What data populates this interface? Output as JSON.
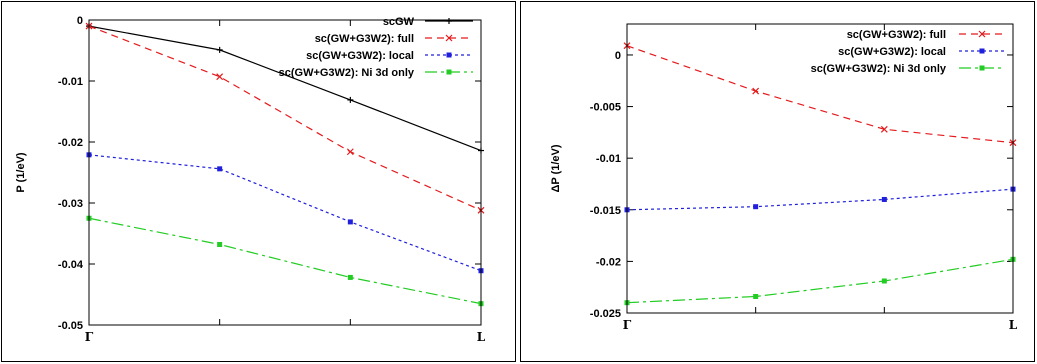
{
  "chart_data": [
    {
      "type": "line",
      "ylabel": "P (1/eV)",
      "ylim": [
        -0.05,
        0
      ],
      "yticks": [
        "0",
        "-0.01",
        "-0.02",
        "-0.03",
        "-0.04",
        "-0.05"
      ],
      "ytick_values": [
        0,
        -0.01,
        -0.02,
        -0.03,
        -0.04,
        -0.05
      ],
      "categories": [
        "Γ",
        "L"
      ],
      "xlim": [
        0,
        3
      ],
      "legend": "top-right",
      "series": [
        {
          "name": "scGW",
          "color": "#000000",
          "dash": "",
          "marker": "plus",
          "x": [
            0,
            1,
            2,
            3
          ],
          "y": [
            -0.001,
            -0.0049,
            -0.0131,
            -0.0214
          ]
        },
        {
          "name": "sc(GW+G3W2): full",
          "color": "#e41a1c",
          "dash": "7,5",
          "marker": "cross",
          "x": [
            0,
            1,
            2,
            3
          ],
          "y": [
            -0.001,
            -0.0093,
            -0.0216,
            -0.0312
          ]
        },
        {
          "name": "sc(GW+G3W2): local",
          "color": "#1f1fdc",
          "dash": "3,3",
          "marker": "square",
          "x": [
            0,
            1,
            2,
            3
          ],
          "y": [
            -0.0221,
            -0.0244,
            -0.0331,
            -0.0411
          ]
        },
        {
          "name": "sc(GW+G3W2): Ni 3d only",
          "color": "#22cc22",
          "dash": "12,4,3,4",
          "marker": "square",
          "x": [
            0,
            1,
            2,
            3
          ],
          "y": [
            -0.0325,
            -0.0368,
            -0.0422,
            -0.0465
          ]
        }
      ]
    },
    {
      "type": "line",
      "ylabel": "ΔP (1/eV)",
      "ylim": [
        -0.025,
        0.003
      ],
      "yticks": [
        "0",
        "-0.005",
        "-0.01",
        "-0.015",
        "-0.02",
        "-0.025"
      ],
      "ytick_values": [
        0,
        -0.005,
        -0.01,
        -0.015,
        -0.02,
        -0.025
      ],
      "categories": [
        "Γ",
        "L"
      ],
      "xlim": [
        0,
        3
      ],
      "legend": "top-right",
      "series": [
        {
          "name": "sc(GW+G3W2): full",
          "color": "#e41a1c",
          "dash": "7,5",
          "marker": "cross",
          "x": [
            0,
            1,
            2,
            3
          ],
          "y": [
            0.0009,
            -0.0035,
            -0.0072,
            -0.0085
          ]
        },
        {
          "name": "sc(GW+G3W2): local",
          "color": "#1f1fdc",
          "dash": "3,3",
          "marker": "square",
          "x": [
            0,
            1,
            2,
            3
          ],
          "y": [
            -0.015,
            -0.0147,
            -0.014,
            -0.013
          ]
        },
        {
          "name": "sc(GW+G3W2): Ni 3d only",
          "color": "#22cc22",
          "dash": "12,4,3,4",
          "marker": "square",
          "x": [
            0,
            1,
            2,
            3
          ],
          "y": [
            -0.024,
            -0.0234,
            -0.0219,
            -0.0198
          ]
        }
      ]
    }
  ]
}
